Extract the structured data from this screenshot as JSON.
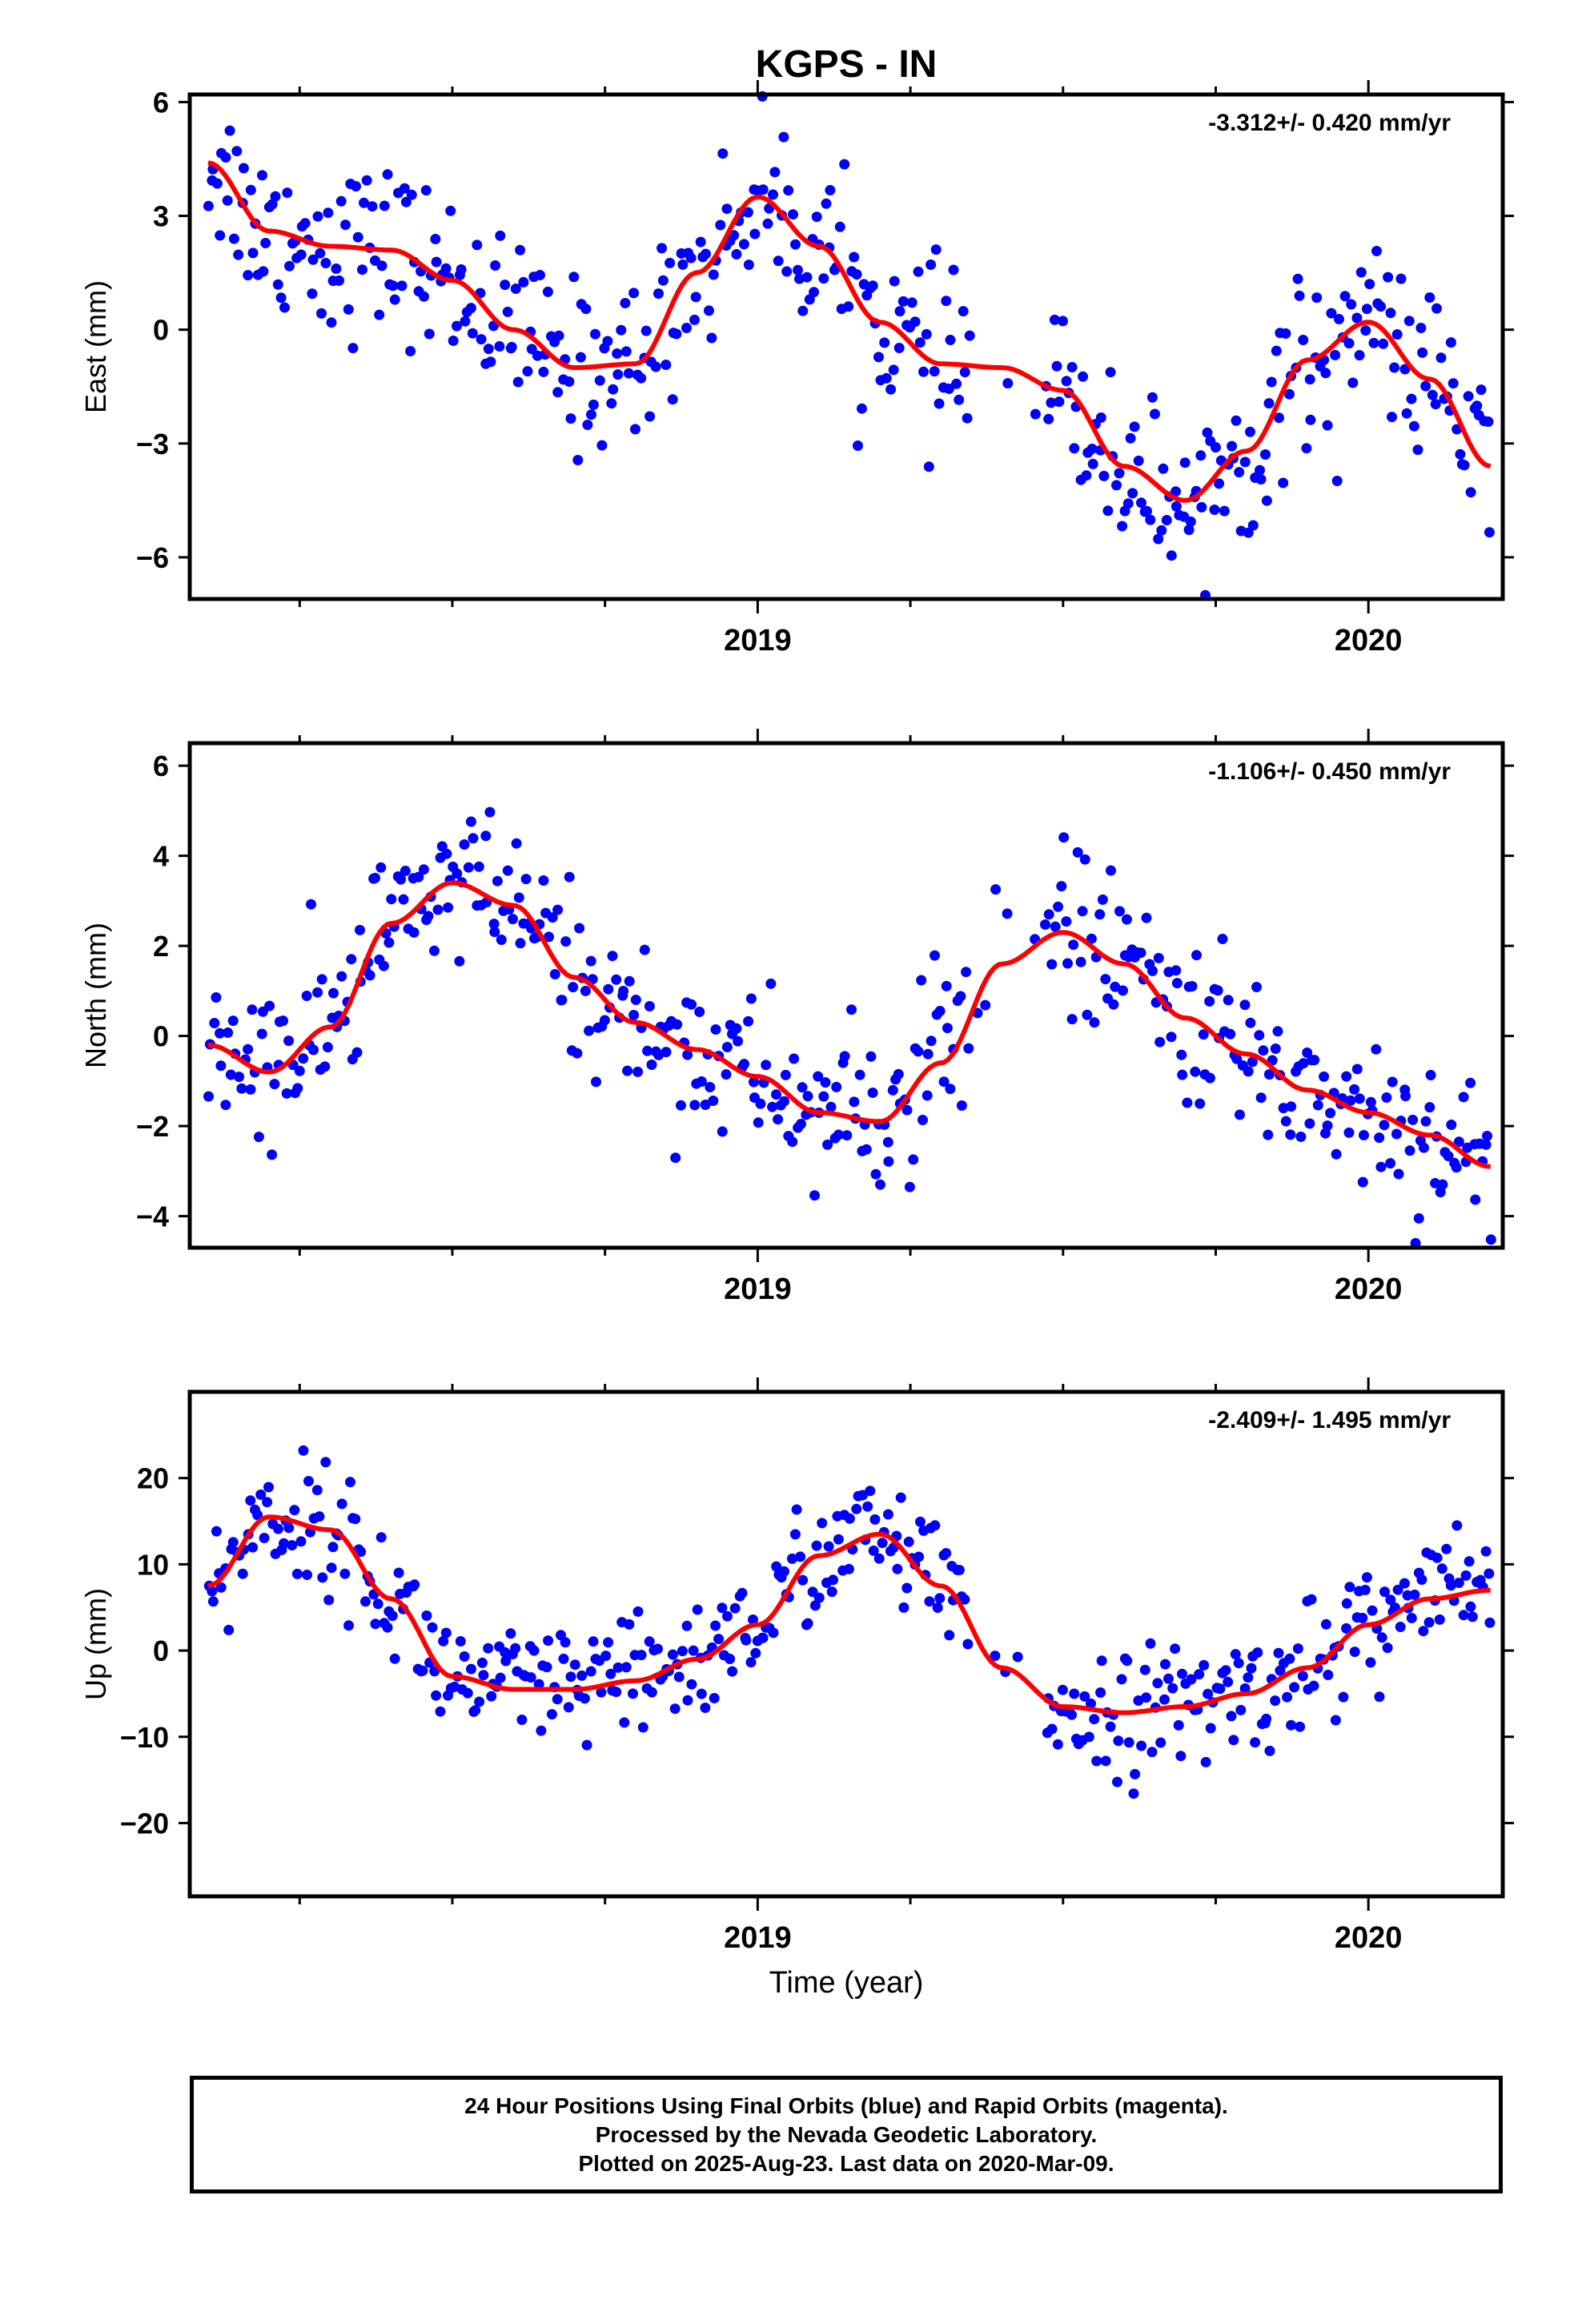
{
  "title": "KGPS - IN",
  "xlabel": "Time (year)",
  "footer": {
    "line1": "24 Hour Positions Using Final Orbits (blue) and Rapid Orbits (magenta).",
    "line2": "Processed by the Nevada Geodetic Laboratory.",
    "line3": "Plotted on 2025-Aug-23. Last data on 2020-Mar-09."
  },
  "colors": {
    "points": "#0000ff",
    "fit": "#ff0000",
    "axes": "#000000"
  },
  "chart_data": [
    {
      "type": "scatter",
      "ylabel": "East (mm)",
      "rate_label": "-3.312+/- 0.420 mm/yr",
      "xlim": [
        2018.07,
        2020.22
      ],
      "ylim": [
        -7.1,
        6.2
      ],
      "yticks": [
        -6,
        -3,
        0,
        3,
        6
      ],
      "xticks": [
        2019,
        2020
      ],
      "series": [
        {
          "kind": "fit",
          "x": [
            2018.1,
            2018.2,
            2018.3,
            2018.4,
            2018.5,
            2018.6,
            2018.7,
            2018.8,
            2018.9,
            2019.0,
            2019.1,
            2019.2,
            2019.3,
            2019.4,
            2019.5,
            2019.6,
            2019.7,
            2019.8,
            2019.9,
            2020.0,
            2020.1,
            2020.2
          ],
          "y": [
            4.4,
            2.6,
            2.2,
            2.1,
            1.3,
            0.0,
            -1.0,
            -0.9,
            1.5,
            3.5,
            2.2,
            0.2,
            -0.9,
            -1.0,
            -1.6,
            -3.6,
            -4.5,
            -3.2,
            -0.8,
            0.2,
            -1.3,
            -3.6
          ]
        }
      ],
      "scatter_model": {
        "noise": 1.1,
        "n": 460,
        "xstart": 2018.1,
        "xend": 2020.2,
        "gap": [
          2019.35,
          2019.47
        ]
      }
    },
    {
      "type": "scatter",
      "ylabel": "North (mm)",
      "rate_label": "-1.106+/- 0.450 mm/yr",
      "xlim": [
        2018.07,
        2020.22
      ],
      "ylim": [
        -4.7,
        6.5
      ],
      "yticks": [
        -4,
        -2,
        0,
        2,
        4,
        6
      ],
      "xticks": [
        2019,
        2020
      ],
      "series": [
        {
          "kind": "fit",
          "x": [
            2018.1,
            2018.2,
            2018.3,
            2018.4,
            2018.5,
            2018.6,
            2018.7,
            2018.8,
            2018.9,
            2019.0,
            2019.1,
            2019.2,
            2019.3,
            2019.4,
            2019.5,
            2019.6,
            2019.7,
            2019.8,
            2019.9,
            2020.0,
            2020.1,
            2020.2
          ],
          "y": [
            -0.2,
            -0.8,
            0.2,
            2.5,
            3.4,
            2.9,
            1.3,
            0.3,
            -0.3,
            -0.9,
            -1.7,
            -1.9,
            -0.6,
            1.6,
            2.3,
            1.6,
            0.4,
            -0.4,
            -1.2,
            -1.7,
            -2.2,
            -2.9
          ]
        }
      ],
      "scatter_model": {
        "noise": 0.9,
        "n": 460,
        "xstart": 2018.1,
        "xend": 2020.2,
        "gap": [
          2019.35,
          2019.47
        ]
      }
    },
    {
      "type": "scatter",
      "ylabel": "Up (mm)",
      "rate_label": "-2.409+/- 1.495 mm/yr",
      "xlim": [
        2018.07,
        2020.22
      ],
      "ylim": [
        -28.5,
        30
      ],
      "yticks": [
        -20,
        -10,
        0,
        10,
        20
      ],
      "xticks": [
        2019,
        2020
      ],
      "series": [
        {
          "kind": "fit",
          "x": [
            2018.1,
            2018.2,
            2018.3,
            2018.4,
            2018.5,
            2018.6,
            2018.7,
            2018.8,
            2018.9,
            2019.0,
            2019.1,
            2019.2,
            2019.3,
            2019.4,
            2019.5,
            2019.6,
            2019.7,
            2019.8,
            2019.9,
            2020.0,
            2020.1,
            2020.2
          ],
          "y": [
            7.5,
            15.5,
            14.0,
            6.0,
            -3.0,
            -4.5,
            -4.5,
            -3.5,
            -1.0,
            3.0,
            11.0,
            13.5,
            7.5,
            -2.0,
            -6.5,
            -7.2,
            -6.5,
            -5.0,
            -2.0,
            3.0,
            6.0,
            7.0
          ]
        }
      ],
      "scatter_model": {
        "noise": 3.6,
        "n": 460,
        "xstart": 2018.1,
        "xend": 2020.2,
        "gap": [
          2019.35,
          2019.47
        ]
      }
    }
  ]
}
